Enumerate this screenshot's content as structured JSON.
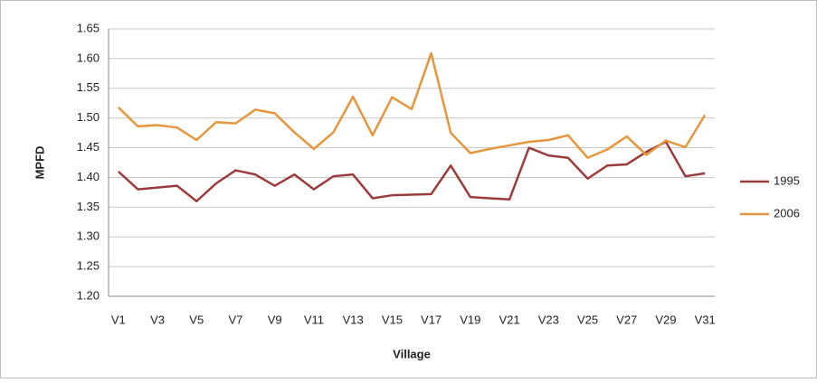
{
  "chart_data": {
    "type": "line",
    "x_label": "Village",
    "y_label": "MPFD",
    "categories": [
      "V1",
      null,
      "V3",
      null,
      "V5",
      null,
      "V7",
      null,
      "V9",
      null,
      "V11",
      null,
      "V13",
      null,
      "V15",
      null,
      "V17",
      null,
      "V19",
      null,
      "V21",
      null,
      "V23",
      null,
      "V25",
      null,
      "V27",
      null,
      "V29",
      null,
      "V31"
    ],
    "series": [
      {
        "name": "1995",
        "color": "#9b3b3b",
        "values": [
          1.41,
          1.38,
          1.383,
          1.386,
          1.36,
          1.39,
          1.412,
          1.405,
          1.386,
          1.405,
          1.38,
          1.402,
          1.405,
          1.365,
          1.37,
          1.371,
          1.372,
          1.42,
          1.367,
          1.365,
          1.363,
          1.45,
          1.437,
          1.433,
          1.398,
          1.42,
          1.422,
          1.443,
          1.46,
          1.402,
          1.407
        ]
      },
      {
        "name": "2006",
        "color": "#e6963c",
        "values": [
          1.518,
          1.486,
          1.488,
          1.484,
          1.463,
          1.493,
          1.491,
          1.514,
          1.508,
          1.476,
          1.448,
          1.476,
          1.536,
          1.471,
          1.535,
          1.515,
          1.609,
          1.475,
          1.441,
          1.448,
          1.454,
          1.46,
          1.463,
          1.471,
          1.433,
          1.447,
          1.469,
          1.438,
          1.462,
          1.451,
          1.505
        ]
      }
    ],
    "ylim": [
      1.2,
      1.65
    ],
    "yticks": [
      {
        "value": 1.2,
        "label": "1.20"
      },
      1.25,
      {
        "value": 1.3,
        "label": "1.30"
      },
      1.35,
      {
        "value": 1.4,
        "label": "1.40"
      },
      1.45,
      {
        "value": 1.5,
        "label": "1.50"
      },
      1.55,
      {
        "value": 1.6,
        "label": "1.60"
      },
      1.65
    ],
    "grid": true,
    "legend": "right"
  }
}
